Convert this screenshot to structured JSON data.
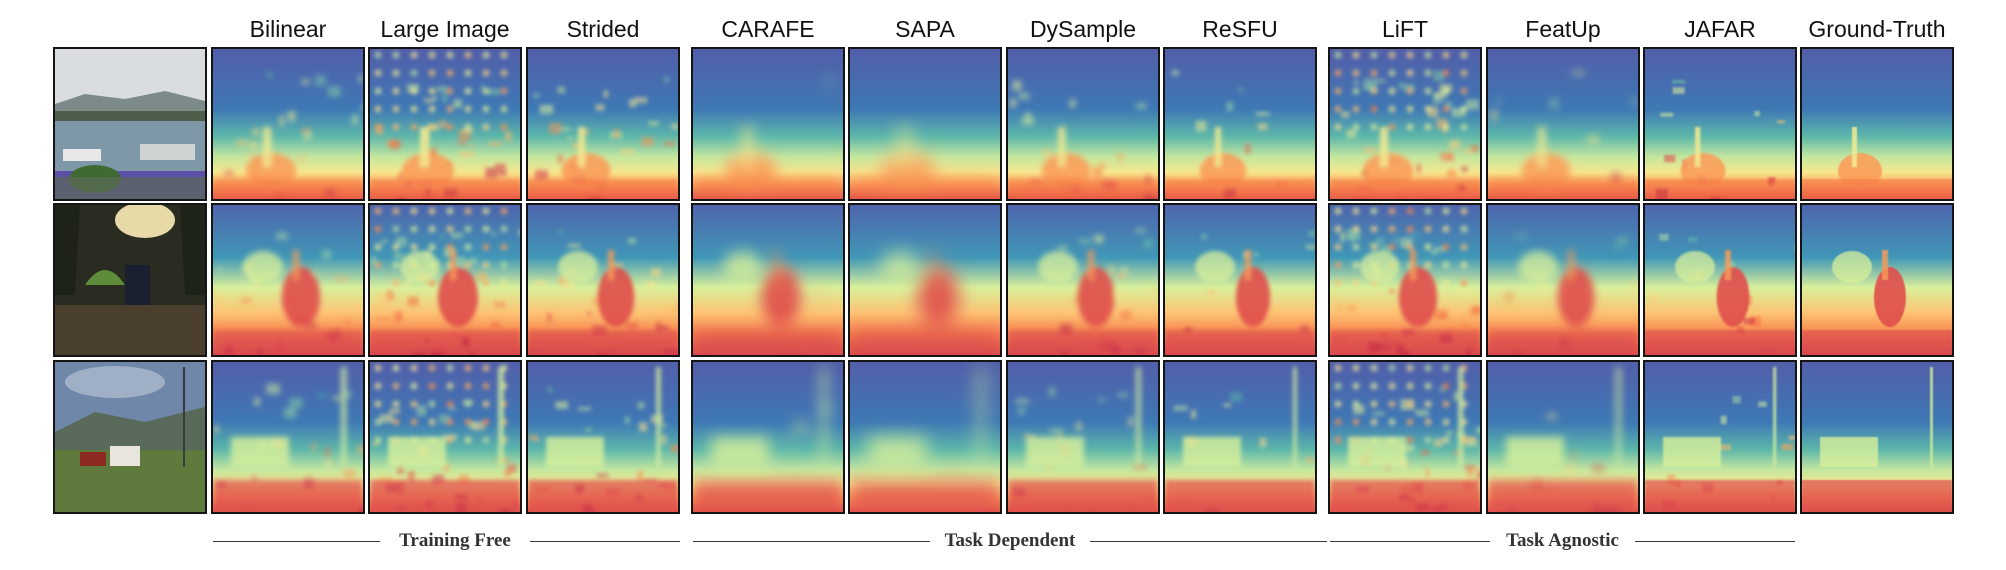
{
  "figure": {
    "columns": [
      {
        "key": "input",
        "label": ""
      },
      {
        "key": "bilinear",
        "label": "Bilinear"
      },
      {
        "key": "large_image",
        "label": "Large Image"
      },
      {
        "key": "strided",
        "label": "Strided"
      },
      {
        "key": "carafe",
        "label": "CARAFE"
      },
      {
        "key": "sapa",
        "label": "SAPA"
      },
      {
        "key": "dysample",
        "label": "DySample"
      },
      {
        "key": "resfu",
        "label": "ReSFU"
      },
      {
        "key": "lift",
        "label": "LiFT"
      },
      {
        "key": "featup",
        "label": "FeatUp"
      },
      {
        "key": "jafar",
        "label": "JAFAR"
      },
      {
        "key": "ground_truth",
        "label": "Ground-Truth"
      }
    ],
    "rows": [
      {
        "scene": "harbor with boats"
      },
      {
        "scene": "camp with tent and motorcycle"
      },
      {
        "scene": "train with power pole"
      }
    ],
    "groups": [
      {
        "label": "Training Free"
      },
      {
        "label": "Task Dependent"
      },
      {
        "label": "Task Agnostic"
      }
    ],
    "colormap": [
      "#5e4fa2",
      "#3288bd",
      "#66c2a5",
      "#abdda4",
      "#e6f598",
      "#fee08b",
      "#fdae61",
      "#f46d43",
      "#d53e4f",
      "#9e0142"
    ]
  }
}
